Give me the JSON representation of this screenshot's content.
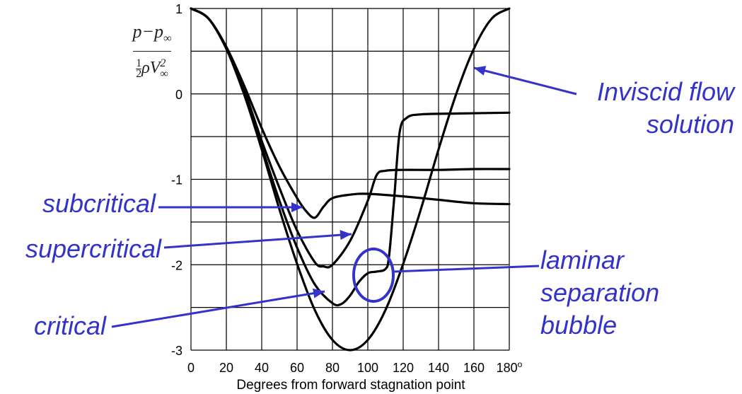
{
  "chart_data": {
    "type": "line",
    "xlabel": "Degrees from forward stagnation point",
    "ylabel": "p - p∞ / ½ρV∞²",
    "xlim": [
      0,
      180
    ],
    "ylim": [
      -3,
      1
    ],
    "x_ticks": [
      "0",
      "20",
      "40",
      "60",
      "80",
      "100",
      "120",
      "140",
      "160",
      "180"
    ],
    "x_tick_suffix": "o",
    "y_ticks": [
      "1",
      "0",
      "-1",
      "-2",
      "-3"
    ],
    "grid": true,
    "series": [
      {
        "name": "Inviscid flow solution",
        "x": [
          0,
          10,
          20,
          30,
          40,
          50,
          60,
          70,
          80,
          90,
          100,
          110,
          120,
          130,
          140,
          150,
          160,
          170,
          180
        ],
        "y": [
          1,
          0.88,
          0.53,
          0.0,
          -0.65,
          -1.35,
          -1.99,
          -2.53,
          -2.88,
          -3.0,
          -2.88,
          -2.53,
          -1.99,
          -1.35,
          -0.65,
          0.0,
          0.53,
          0.88,
          1
        ]
      },
      {
        "name": "subcritical",
        "x": [
          0,
          10,
          20,
          30,
          40,
          50,
          60,
          65,
          70,
          75,
          80,
          90,
          100,
          120,
          140,
          160,
          180
        ],
        "y": [
          1,
          0.88,
          0.55,
          0.1,
          -0.4,
          -0.85,
          -1.22,
          -1.37,
          -1.45,
          -1.32,
          -1.22,
          -1.18,
          -1.17,
          -1.2,
          -1.24,
          -1.28,
          -1.29
        ]
      },
      {
        "name": "supercritical",
        "x": [
          0,
          10,
          20,
          30,
          40,
          50,
          60,
          70,
          75,
          80,
          90,
          100,
          105,
          110,
          120,
          140,
          160,
          180
        ],
        "y": [
          1,
          0.88,
          0.53,
          0.05,
          -0.55,
          -1.1,
          -1.6,
          -1.97,
          -2.02,
          -2.0,
          -1.72,
          -1.25,
          -0.95,
          -0.9,
          -0.89,
          -0.89,
          -0.88,
          -0.88
        ]
      },
      {
        "name": "critical",
        "x": [
          0,
          10,
          20,
          30,
          40,
          50,
          60,
          70,
          80,
          85,
          90,
          95,
          100,
          105,
          110,
          112,
          115,
          118,
          122,
          130,
          150,
          180
        ],
        "y": [
          1,
          0.88,
          0.53,
          0.0,
          -0.62,
          -1.25,
          -1.8,
          -2.23,
          -2.45,
          -2.46,
          -2.36,
          -2.2,
          -2.1,
          -2.08,
          -2.05,
          -1.9,
          -1.2,
          -0.45,
          -0.28,
          -0.24,
          -0.23,
          -0.22
        ]
      }
    ],
    "annotations": [
      {
        "text": "Inviscid flow solution",
        "lines": [
          "Inviscid flow",
          "solution"
        ]
      },
      {
        "text": "subcritical",
        "lines": [
          "subcritical"
        ]
      },
      {
        "text": "supercritical",
        "lines": [
          "supercritical"
        ]
      },
      {
        "text": "critical",
        "lines": [
          "critical"
        ]
      },
      {
        "text": "laminar separation bubble",
        "lines": [
          "laminar",
          "separation",
          "bubble"
        ]
      }
    ],
    "annotation_color": "#3333cc",
    "curve_color": "#000000"
  }
}
